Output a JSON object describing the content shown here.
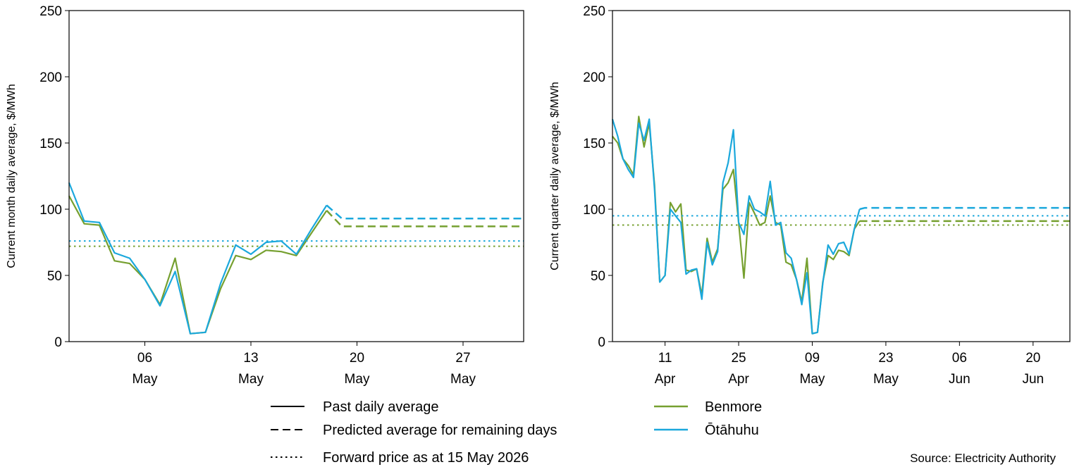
{
  "colors": {
    "benmore": "#76a030",
    "otahuhu": "#1ba8dc"
  },
  "source": "Source: Electricity Authority",
  "legend": {
    "styles": [
      {
        "label": "Past daily average",
        "dash": "solid"
      },
      {
        "label": "Predicted average for remaining days",
        "dash": "dashed"
      },
      {
        "label": "Forward price as at 15 May 2026",
        "dash": "dotted"
      }
    ],
    "series": [
      {
        "label": "Benmore",
        "color": "#76a030"
      },
      {
        "label": "Ōtāhuhu",
        "color": "#1ba8dc"
      }
    ]
  },
  "chart_data": [
    {
      "type": "line",
      "ylabel": "Current month daily average, $/MWh",
      "ylim": [
        0,
        250
      ],
      "yticks": [
        0,
        50,
        100,
        150,
        200,
        250
      ],
      "xlim": [
        1,
        31
      ],
      "xticks": [
        {
          "x": 6,
          "day": "06",
          "month": "May"
        },
        {
          "x": 13,
          "day": "13",
          "month": "May"
        },
        {
          "x": 20,
          "day": "20",
          "month": "May"
        },
        {
          "x": 27,
          "day": "27",
          "month": "May"
        }
      ],
      "series": [
        {
          "name": "Benmore",
          "color": "#76a030",
          "past": [
            [
              1,
              110
            ],
            [
              2,
              89
            ],
            [
              3,
              88
            ],
            [
              4,
              61
            ],
            [
              5,
              59
            ],
            [
              6,
              47
            ],
            [
              7,
              28
            ],
            [
              8,
              63
            ],
            [
              9,
              6
            ],
            [
              10,
              7
            ],
            [
              11,
              40
            ],
            [
              12,
              65
            ],
            [
              13,
              62
            ],
            [
              14,
              69
            ],
            [
              15,
              68
            ],
            [
              16,
              65
            ],
            [
              17,
              82
            ],
            [
              18,
              99
            ]
          ],
          "predicted": [
            [
              18,
              99
            ],
            [
              19,
              87
            ],
            [
              31,
              87
            ]
          ],
          "forward": 72
        },
        {
          "name": "Ōtāhuhu",
          "color": "#1ba8dc",
          "past": [
            [
              1,
              120
            ],
            [
              2,
              91
            ],
            [
              3,
              90
            ],
            [
              4,
              67
            ],
            [
              5,
              63
            ],
            [
              6,
              47
            ],
            [
              7,
              27
            ],
            [
              8,
              53
            ],
            [
              9,
              6
            ],
            [
              10,
              7
            ],
            [
              11,
              44
            ],
            [
              12,
              73
            ],
            [
              13,
              66
            ],
            [
              14,
              75
            ],
            [
              15,
              76
            ],
            [
              16,
              66
            ],
            [
              17,
              85
            ],
            [
              18,
              103
            ]
          ],
          "predicted": [
            [
              18,
              103
            ],
            [
              19,
              93
            ],
            [
              31,
              93
            ]
          ],
          "forward": 76
        }
      ]
    },
    {
      "type": "line",
      "ylabel": "Current quarter daily average, $/MWh",
      "ylim": [
        0,
        250
      ],
      "yticks": [
        0,
        50,
        100,
        150,
        200,
        250
      ],
      "xlim": [
        1,
        88
      ],
      "xticks": [
        {
          "x": 11,
          "day": "11",
          "month": "Apr"
        },
        {
          "x": 25,
          "day": "25",
          "month": "Apr"
        },
        {
          "x": 39,
          "day": "09",
          "month": "May"
        },
        {
          "x": 53,
          "day": "23",
          "month": "May"
        },
        {
          "x": 67,
          "day": "06",
          "month": "Jun"
        },
        {
          "x": 81,
          "day": "20",
          "month": "Jun"
        }
      ],
      "series": [
        {
          "name": "Benmore",
          "color": "#76a030",
          "past": [
            [
              1,
              155
            ],
            [
              2,
              150
            ],
            [
              3,
              138
            ],
            [
              4,
              133
            ],
            [
              5,
              126
            ],
            [
              6,
              170
            ],
            [
              7,
              147
            ],
            [
              8,
              165
            ],
            [
              9,
              118
            ],
            [
              10,
              45
            ],
            [
              11,
              50
            ],
            [
              12,
              105
            ],
            [
              13,
              98
            ],
            [
              14,
              104
            ],
            [
              15,
              54
            ],
            [
              16,
              53
            ],
            [
              17,
              55
            ],
            [
              18,
              35
            ],
            [
              19,
              78
            ],
            [
              20,
              60
            ],
            [
              21,
              70
            ],
            [
              22,
              115
            ],
            [
              23,
              120
            ],
            [
              24,
              130
            ],
            [
              25,
              90
            ],
            [
              26,
              48
            ],
            [
              27,
              105
            ],
            [
              28,
              97
            ],
            [
              29,
              88
            ],
            [
              30,
              90
            ],
            [
              31,
              110
            ],
            [
              32,
              90
            ],
            [
              33,
              88
            ],
            [
              34,
              60
            ],
            [
              35,
              58
            ],
            [
              36,
              47
            ],
            [
              37,
              30
            ],
            [
              38,
              63
            ],
            [
              39,
              6
            ],
            [
              40,
              7
            ],
            [
              41,
              45
            ],
            [
              42,
              65
            ],
            [
              43,
              62
            ],
            [
              44,
              69
            ],
            [
              45,
              68
            ],
            [
              46,
              65
            ],
            [
              47,
              85
            ],
            [
              48,
              91
            ]
          ],
          "predicted": [
            [
              48,
              91
            ],
            [
              88,
              91
            ]
          ],
          "forward": 88
        },
        {
          "name": "Ōtāhuhu",
          "color": "#1ba8dc",
          "past": [
            [
              1,
              168
            ],
            [
              2,
              155
            ],
            [
              3,
              138
            ],
            [
              4,
              130
            ],
            [
              5,
              124
            ],
            [
              6,
              165
            ],
            [
              7,
              152
            ],
            [
              8,
              168
            ],
            [
              9,
              115
            ],
            [
              10,
              45
            ],
            [
              11,
              50
            ],
            [
              12,
              100
            ],
            [
              13,
              95
            ],
            [
              14,
              90
            ],
            [
              15,
              51
            ],
            [
              16,
              54
            ],
            [
              17,
              55
            ],
            [
              18,
              32
            ],
            [
              19,
              75
            ],
            [
              20,
              58
            ],
            [
              21,
              68
            ],
            [
              22,
              120
            ],
            [
              23,
              135
            ],
            [
              24,
              160
            ],
            [
              25,
              90
            ],
            [
              26,
              81
            ],
            [
              27,
              110
            ],
            [
              28,
              100
            ],
            [
              29,
              98
            ],
            [
              30,
              95
            ],
            [
              31,
              121
            ],
            [
              32,
              88
            ],
            [
              33,
              90
            ],
            [
              34,
              67
            ],
            [
              35,
              63
            ],
            [
              36,
              47
            ],
            [
              37,
              28
            ],
            [
              38,
              52
            ],
            [
              39,
              6
            ],
            [
              40,
              7
            ],
            [
              41,
              44
            ],
            [
              42,
              73
            ],
            [
              43,
              66
            ],
            [
              44,
              74
            ],
            [
              45,
              75
            ],
            [
              46,
              66
            ],
            [
              47,
              85
            ],
            [
              48,
              100
            ]
          ],
          "predicted": [
            [
              48,
              100
            ],
            [
              49,
              101
            ],
            [
              88,
              101
            ]
          ],
          "forward": 95
        }
      ]
    }
  ]
}
